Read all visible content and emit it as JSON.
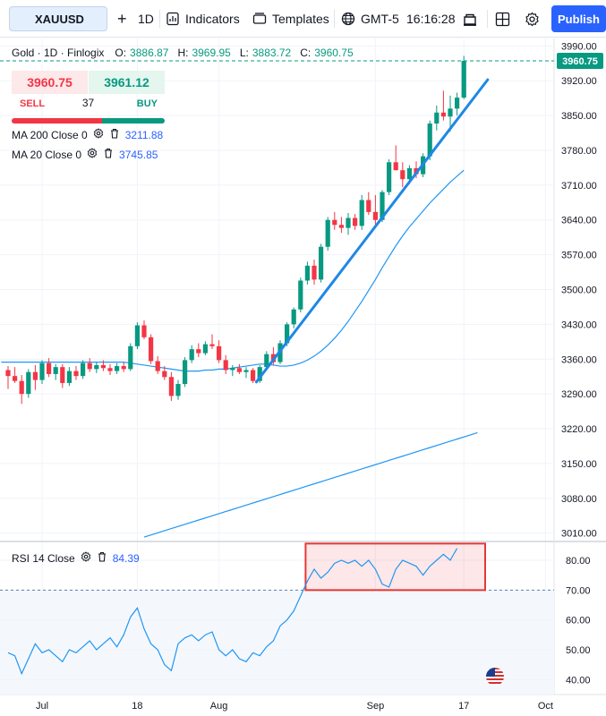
{
  "toolbar": {
    "symbol": "XAUUSD",
    "add": "+",
    "interval": "1D",
    "indicators": "Indicators",
    "templates": "Templates",
    "timezone": "GMT-5",
    "clock": "16:16:28",
    "publish": "Publish"
  },
  "legend": {
    "title": "Gold · 1D · Finlogix",
    "o_label": "O:",
    "o_value": "3886.87",
    "h_label": "H:",
    "h_value": "3969.95",
    "l_label": "L:",
    "l_value": "3883.72",
    "c_label": "C:",
    "c_value": "3960.75"
  },
  "trade": {
    "sell_price": "3960.75",
    "buy_price": "3961.12",
    "sell_label": "SELL",
    "buy_label": "BUY",
    "spread": "37"
  },
  "indicators": {
    "ma200_label": "MA 200 Close 0",
    "ma200_value": "3211.88",
    "ma20_label": "MA 20 Close 0",
    "ma20_value": "3745.85"
  },
  "rsi": {
    "label": "RSI 14 Close",
    "value": "84.39"
  },
  "colors": {
    "up": "#089981",
    "down": "#f23645",
    "ma": "#2196f3",
    "trendline": "#1e88e5",
    "accent": "#2962ff"
  },
  "icons": [
    "plus-icon",
    "indicators-icon",
    "templates-icon",
    "globe-icon",
    "screenshot-icon",
    "layout-grid-icon",
    "gear-icon",
    "trash-icon",
    "us-flag-icon"
  ],
  "chart_data": [
    {
      "type": "candlestick",
      "title": "Gold · 1D · Finlogix",
      "price_axis": {
        "ticks": [
          "3990.00",
          "3920.00",
          "3850.00",
          "3780.00",
          "3710.00",
          "3640.00",
          "3570.00",
          "3500.00",
          "3430.00",
          "3360.00",
          "3290.00",
          "3220.00",
          "3150.00",
          "3080.00",
          "3010.00"
        ],
        "range": [
          2995,
          4005
        ],
        "last_price_label": "3960.75"
      },
      "time_axis": {
        "ticks": [
          "Jul",
          "18",
          "Aug",
          "Sep",
          "17",
          "Oct"
        ],
        "tick_bar_index": [
          5,
          19,
          31,
          54,
          67,
          79
        ]
      },
      "candles": [
        {
          "o": 3338,
          "h": 3346,
          "l": 3300,
          "c": 3326
        },
        {
          "o": 3326,
          "h": 3344,
          "l": 3312,
          "c": 3316
        },
        {
          "o": 3316,
          "h": 3328,
          "l": 3270,
          "c": 3290
        },
        {
          "o": 3290,
          "h": 3340,
          "l": 3282,
          "c": 3334
        },
        {
          "o": 3334,
          "h": 3348,
          "l": 3298,
          "c": 3318
        },
        {
          "o": 3318,
          "h": 3358,
          "l": 3310,
          "c": 3352
        },
        {
          "o": 3352,
          "h": 3362,
          "l": 3324,
          "c": 3330
        },
        {
          "o": 3330,
          "h": 3350,
          "l": 3318,
          "c": 3344
        },
        {
          "o": 3344,
          "h": 3350,
          "l": 3302,
          "c": 3312
        },
        {
          "o": 3312,
          "h": 3344,
          "l": 3306,
          "c": 3336
        },
        {
          "o": 3336,
          "h": 3346,
          "l": 3318,
          "c": 3326
        },
        {
          "o": 3326,
          "h": 3358,
          "l": 3320,
          "c": 3352
        },
        {
          "o": 3352,
          "h": 3362,
          "l": 3334,
          "c": 3340
        },
        {
          "o": 3340,
          "h": 3354,
          "l": 3332,
          "c": 3348
        },
        {
          "o": 3348,
          "h": 3358,
          "l": 3336,
          "c": 3342
        },
        {
          "o": 3342,
          "h": 3350,
          "l": 3328,
          "c": 3336
        },
        {
          "o": 3336,
          "h": 3352,
          "l": 3330,
          "c": 3346
        },
        {
          "o": 3346,
          "h": 3354,
          "l": 3334,
          "c": 3340
        },
        {
          "o": 3340,
          "h": 3392,
          "l": 3336,
          "c": 3386
        },
        {
          "o": 3386,
          "h": 3434,
          "l": 3380,
          "c": 3428
        },
        {
          "o": 3428,
          "h": 3438,
          "l": 3400,
          "c": 3404
        },
        {
          "o": 3404,
          "h": 3410,
          "l": 3350,
          "c": 3356
        },
        {
          "o": 3356,
          "h": 3366,
          "l": 3330,
          "c": 3336
        },
        {
          "o": 3336,
          "h": 3346,
          "l": 3318,
          "c": 3324
        },
        {
          "o": 3324,
          "h": 3334,
          "l": 3276,
          "c": 3286
        },
        {
          "o": 3286,
          "h": 3318,
          "l": 3278,
          "c": 3310
        },
        {
          "o": 3310,
          "h": 3364,
          "l": 3304,
          "c": 3358
        },
        {
          "o": 3358,
          "h": 3388,
          "l": 3352,
          "c": 3380
        },
        {
          "o": 3380,
          "h": 3392,
          "l": 3364,
          "c": 3372
        },
        {
          "o": 3372,
          "h": 3396,
          "l": 3368,
          "c": 3390
        },
        {
          "o": 3390,
          "h": 3410,
          "l": 3380,
          "c": 3386
        },
        {
          "o": 3386,
          "h": 3398,
          "l": 3352,
          "c": 3358
        },
        {
          "o": 3358,
          "h": 3368,
          "l": 3330,
          "c": 3338
        },
        {
          "o": 3338,
          "h": 3348,
          "l": 3326,
          "c": 3342
        },
        {
          "o": 3342,
          "h": 3350,
          "l": 3330,
          "c": 3334
        },
        {
          "o": 3334,
          "h": 3344,
          "l": 3322,
          "c": 3338
        },
        {
          "o": 3338,
          "h": 3342,
          "l": 3312,
          "c": 3316
        },
        {
          "o": 3316,
          "h": 3348,
          "l": 3312,
          "c": 3344
        },
        {
          "o": 3344,
          "h": 3376,
          "l": 3338,
          "c": 3370
        },
        {
          "o": 3370,
          "h": 3384,
          "l": 3348,
          "c": 3354
        },
        {
          "o": 3354,
          "h": 3398,
          "l": 3350,
          "c": 3392
        },
        {
          "o": 3392,
          "h": 3434,
          "l": 3386,
          "c": 3430
        },
        {
          "o": 3430,
          "h": 3464,
          "l": 3422,
          "c": 3460
        },
        {
          "o": 3460,
          "h": 3524,
          "l": 3454,
          "c": 3518
        },
        {
          "o": 3518,
          "h": 3556,
          "l": 3510,
          "c": 3548
        },
        {
          "o": 3548,
          "h": 3560,
          "l": 3510,
          "c": 3520
        },
        {
          "o": 3520,
          "h": 3592,
          "l": 3514,
          "c": 3586
        },
        {
          "o": 3586,
          "h": 3646,
          "l": 3578,
          "c": 3640
        },
        {
          "o": 3640,
          "h": 3656,
          "l": 3620,
          "c": 3630
        },
        {
          "o": 3630,
          "h": 3646,
          "l": 3614,
          "c": 3624
        },
        {
          "o": 3624,
          "h": 3654,
          "l": 3610,
          "c": 3644
        },
        {
          "o": 3644,
          "h": 3652,
          "l": 3620,
          "c": 3628
        },
        {
          "o": 3628,
          "h": 3690,
          "l": 3620,
          "c": 3680
        },
        {
          "o": 3680,
          "h": 3696,
          "l": 3650,
          "c": 3656
        },
        {
          "o": 3656,
          "h": 3690,
          "l": 3626,
          "c": 3640
        },
        {
          "o": 3640,
          "h": 3700,
          "l": 3636,
          "c": 3696
        },
        {
          "o": 3696,
          "h": 3762,
          "l": 3690,
          "c": 3756
        },
        {
          "o": 3756,
          "h": 3790,
          "l": 3740,
          "c": 3740
        },
        {
          "o": 3740,
          "h": 3756,
          "l": 3706,
          "c": 3722
        },
        {
          "o": 3722,
          "h": 3750,
          "l": 3712,
          "c": 3744
        },
        {
          "o": 3744,
          "h": 3758,
          "l": 3724,
          "c": 3732
        },
        {
          "o": 3732,
          "h": 3774,
          "l": 3726,
          "c": 3768
        },
        {
          "o": 3768,
          "h": 3840,
          "l": 3760,
          "c": 3834
        },
        {
          "o": 3834,
          "h": 3870,
          "l": 3820,
          "c": 3856
        },
        {
          "o": 3856,
          "h": 3900,
          "l": 3840,
          "c": 3848
        },
        {
          "o": 3848,
          "h": 3890,
          "l": 3818,
          "c": 3864
        },
        {
          "o": 3864,
          "h": 3896,
          "l": 3850,
          "c": 3886
        },
        {
          "o": 3886,
          "h": 3970,
          "l": 3883,
          "c": 3960
        }
      ],
      "ma20": [
        3354,
        3352,
        3350,
        3348,
        3346,
        3344,
        3342,
        3340,
        3338,
        3336,
        3336,
        3336,
        3338,
        3338,
        3340,
        3340,
        3342,
        3344,
        3346,
        3348,
        3350,
        3350,
        3348,
        3346,
        3346,
        3348,
        3352,
        3358,
        3366,
        3376,
        3388,
        3402,
        3418,
        3436,
        3456,
        3476,
        3498,
        3520,
        3544,
        3566,
        3588,
        3608,
        3626,
        3642,
        3658,
        3674,
        3688,
        3702,
        3716,
        3728,
        3740
      ],
      "ma20_start_index": 17,
      "ma200": [
        3002,
        3008,
        3014,
        3020,
        3026,
        3032,
        3038,
        3044,
        3050,
        3056,
        3062,
        3068,
        3074,
        3080,
        3086,
        3092,
        3098,
        3104,
        3110,
        3116,
        3122,
        3128,
        3134,
        3140,
        3146,
        3152,
        3158,
        3164,
        3170,
        3176,
        3182,
        3188,
        3194,
        3200,
        3206,
        3212
      ],
      "ma200_x_index": [
        20,
        21.4,
        22.8,
        24.2,
        25.6,
        27,
        28.4,
        29.8,
        31.2,
        32.6,
        34,
        35.4,
        36.8,
        38.2,
        39.6,
        41,
        42.4,
        43.8,
        45.2,
        46.6,
        48,
        49.4,
        50.8,
        52.2,
        53.6,
        55,
        56.4,
        57.8,
        59.2,
        60.6,
        62,
        63.4,
        64.8,
        66.2,
        67.6,
        69
      ],
      "trendline": {
        "from": {
          "bar": 36.5,
          "price": 3314
        },
        "to": {
          "bar": 70.5,
          "price": 3922
        }
      }
    },
    {
      "type": "line",
      "title": "RSI 14 Close",
      "y_ticks": [
        "80.00",
        "70.00",
        "60.00",
        "50.00",
        "40.00"
      ],
      "ylim": [
        35,
        86
      ],
      "overbought_level": 70,
      "values": [
        49,
        48,
        42,
        47,
        52,
        49,
        50,
        48,
        46,
        50,
        49,
        51,
        53,
        50,
        52,
        54,
        51,
        55,
        61,
        64,
        57,
        52,
        50,
        45,
        43,
        52,
        54,
        55,
        53,
        55,
        56,
        50,
        48,
        50,
        47,
        46,
        49,
        48,
        51,
        53,
        58,
        60,
        63,
        68,
        73,
        77,
        74,
        76,
        79,
        80,
        79,
        80,
        78,
        80,
        77,
        72,
        71,
        77,
        80,
        79,
        78,
        75,
        78,
        80,
        82,
        80,
        84
      ],
      "highlight_box": {
        "from_bar": 44,
        "to_bar": 70,
        "y_top": 85,
        "y_bottom": 70
      }
    }
  ]
}
